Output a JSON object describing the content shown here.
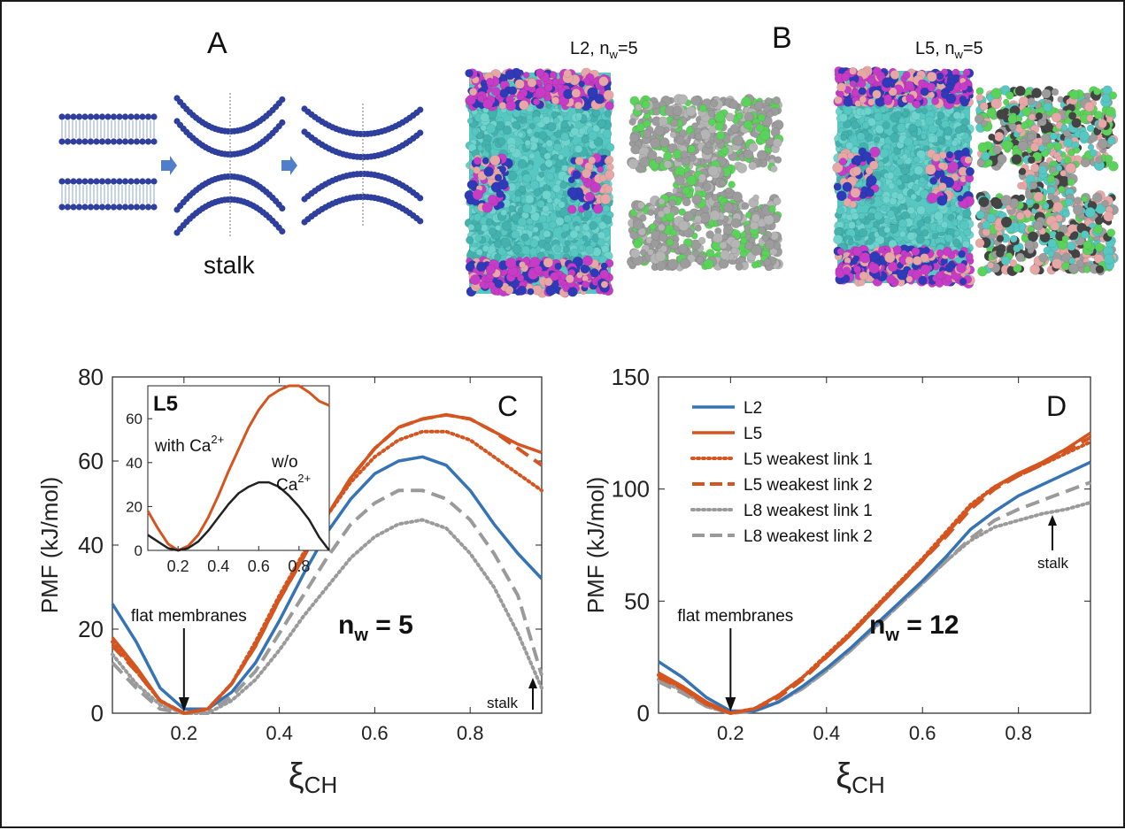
{
  "panel_a": {
    "letter": "A",
    "caption": "stalk"
  },
  "panel_b": {
    "letter": "B",
    "snapshot_left_label": {
      "name": "L2, n",
      "sub": "w",
      "value": "=5"
    },
    "snapshot_right_label": {
      "name": "L5, n",
      "sub": "w",
      "value": "=5"
    }
  },
  "colors": {
    "L2": "#3573b5",
    "L5": "#d4551f",
    "L8": "#9a9a9a",
    "inset_wo": "#222222",
    "water": "#57c7c2",
    "headgroup_magenta": "#c63cc6",
    "headgroup_pink": "#e7a7a7",
    "ion_blue": "#2f3ab8",
    "tail_gray": "#9c9c9c",
    "tail_green": "#5bd35b",
    "schematic_blue": "#2e3f9e"
  },
  "chart_data": [
    {
      "panel": "C",
      "type": "line",
      "ylabel": "PMF (kJ/mol)",
      "xlabel": "ξ",
      "xlabel_sub": "CH",
      "xlim": [
        0.05,
        0.95
      ],
      "ylim": [
        0,
        80
      ],
      "xticks": [
        "0.2",
        "0.4",
        "0.6",
        "0.8"
      ],
      "xtick_values": [
        0.2,
        0.4,
        0.6,
        0.8
      ],
      "yticks": [
        "0",
        "20",
        "40",
        "60",
        "80"
      ],
      "ytick_values": [
        0,
        20,
        40,
        60,
        80
      ],
      "annotation_nw": {
        "n": "n",
        "sub": "w",
        "rest": " = 5"
      },
      "annotation_flat": "flat membranes",
      "annotation_stalk": "stalk",
      "series": [
        {
          "id": "L2",
          "style": "solid",
          "x": [
            0.05,
            0.1,
            0.15,
            0.2,
            0.25,
            0.3,
            0.35,
            0.4,
            0.45,
            0.5,
            0.55,
            0.6,
            0.65,
            0.7,
            0.75,
            0.8,
            0.85,
            0.9,
            0.95
          ],
          "y": [
            26,
            17,
            6,
            1,
            1,
            5,
            12,
            22,
            33,
            43,
            51,
            57,
            60,
            61,
            59,
            53,
            45,
            38,
            32
          ]
        },
        {
          "id": "L5",
          "style": "solid",
          "x": [
            0.05,
            0.1,
            0.15,
            0.2,
            0.25,
            0.3,
            0.35,
            0.4,
            0.45,
            0.5,
            0.55,
            0.6,
            0.65,
            0.7,
            0.75,
            0.8,
            0.85,
            0.9,
            0.95
          ],
          "y": [
            18,
            11,
            3,
            0,
            1,
            7,
            16,
            27,
            37,
            47,
            56,
            63,
            68,
            70,
            71,
            70,
            67,
            64,
            62
          ]
        },
        {
          "id": "L5 weakest link 1",
          "style": "dotted",
          "x": [
            0.05,
            0.1,
            0.15,
            0.2,
            0.25,
            0.3,
            0.35,
            0.4,
            0.45,
            0.5,
            0.55,
            0.6,
            0.65,
            0.7,
            0.75,
            0.8,
            0.85,
            0.9,
            0.95
          ],
          "y": [
            17,
            10,
            3,
            0,
            1,
            7,
            17,
            28,
            38,
            47,
            55,
            61,
            65,
            67,
            67,
            65,
            61,
            57,
            53
          ]
        },
        {
          "id": "L5 weakest link 2",
          "style": "dashed",
          "x": [
            0.05,
            0.1,
            0.15,
            0.2,
            0.25,
            0.3,
            0.35,
            0.4,
            0.45,
            0.5,
            0.55,
            0.6,
            0.65,
            0.7,
            0.75,
            0.8,
            0.85,
            0.9,
            0.95
          ],
          "y": [
            16,
            10,
            3,
            0,
            1,
            7,
            16,
            27,
            37,
            47,
            56,
            63,
            68,
            70,
            71,
            70,
            67,
            63,
            59
          ]
        },
        {
          "id": "L8 weakest link 1",
          "style": "dotted",
          "x": [
            0.05,
            0.1,
            0.15,
            0.2,
            0.25,
            0.3,
            0.35,
            0.4,
            0.45,
            0.5,
            0.55,
            0.6,
            0.65,
            0.7,
            0.75,
            0.8,
            0.85,
            0.9,
            0.95
          ],
          "y": [
            14,
            7,
            2,
            0,
            0,
            3,
            8,
            15,
            23,
            30,
            37,
            42,
            45,
            46,
            44,
            38,
            30,
            19,
            6
          ]
        },
        {
          "id": "L8 weakest link 2",
          "style": "dashed",
          "x": [
            0.05,
            0.1,
            0.15,
            0.2,
            0.25,
            0.3,
            0.35,
            0.4,
            0.45,
            0.5,
            0.55,
            0.6,
            0.65,
            0.7,
            0.75,
            0.8,
            0.85,
            0.9,
            0.95
          ],
          "y": [
            12,
            6,
            1,
            0,
            0,
            4,
            10,
            19,
            28,
            37,
            45,
            50,
            53,
            53,
            51,
            46,
            38,
            28,
            9
          ]
        }
      ],
      "inset": {
        "type": "line",
        "label": "L5",
        "xlim": [
          0.05,
          0.95
        ],
        "ylim": [
          0,
          75
        ],
        "xticks": [
          "0.2",
          "0.4",
          "0.6",
          "0.8"
        ],
        "xtick_values": [
          0.2,
          0.4,
          0.6,
          0.8
        ],
        "yticks": [
          "0",
          "20",
          "40",
          "60"
        ],
        "ytick_values": [
          0,
          20,
          40,
          60
        ],
        "annotation_with": {
          "text": "with Ca",
          "sup": "2+"
        },
        "annotation_wo_1": "w/o",
        "annotation_wo_2": {
          "text": "Ca",
          "sup": "2+"
        },
        "series": [
          {
            "id": "with Ca2+",
            "x": [
              0.05,
              0.1,
              0.15,
              0.2,
              0.25,
              0.3,
              0.35,
              0.4,
              0.45,
              0.5,
              0.55,
              0.6,
              0.65,
              0.7,
              0.75,
              0.8,
              0.85,
              0.9,
              0.95
            ],
            "y": [
              18,
              10,
              3,
              0,
              2,
              7,
              15,
              25,
              36,
              46,
              56,
              64,
              70,
              73,
              75,
              75,
              72,
              68,
              66
            ]
          },
          {
            "id": "w/o Ca2+",
            "x": [
              0.05,
              0.1,
              0.15,
              0.2,
              0.25,
              0.3,
              0.35,
              0.4,
              0.45,
              0.5,
              0.55,
              0.6,
              0.65,
              0.7,
              0.75,
              0.8,
              0.85,
              0.9,
              0.95
            ],
            "y": [
              7,
              4,
              1,
              0,
              1,
              4,
              9,
              15,
              21,
              26,
              29,
              31,
              31,
              29,
              25,
              20,
              14,
              6,
              0
            ]
          }
        ]
      }
    },
    {
      "panel": "D",
      "type": "line",
      "ylabel": "PMF (kJ/mol)",
      "xlabel": "ξ",
      "xlabel_sub": "CH",
      "xlim": [
        0.05,
        0.95
      ],
      "ylim": [
        0,
        150
      ],
      "xticks": [
        "0.2",
        "0.4",
        "0.6",
        "0.8"
      ],
      "xtick_values": [
        0.2,
        0.4,
        0.6,
        0.8
      ],
      "yticks": [
        "0",
        "50",
        "100",
        "150"
      ],
      "ytick_values": [
        0,
        50,
        100,
        150
      ],
      "annotation_nw": {
        "n": "n",
        "sub": "w",
        "rest": " = 12"
      },
      "annotation_flat": "flat membranes",
      "annotation_stalk": "stalk",
      "legend": [
        "L2",
        "L5",
        "L5 weakest link 1",
        "L5 weakest link 2",
        "L8 weakest link 1",
        "L8 weakest link 2"
      ],
      "series": [
        {
          "id": "L2",
          "style": "solid",
          "x": [
            0.05,
            0.1,
            0.15,
            0.2,
            0.25,
            0.3,
            0.35,
            0.4,
            0.45,
            0.5,
            0.55,
            0.6,
            0.65,
            0.7,
            0.75,
            0.8,
            0.85,
            0.9,
            0.95
          ],
          "y": [
            23,
            16,
            7,
            1,
            1,
            5,
            12,
            20,
            29,
            39,
            49,
            59,
            70,
            82,
            90,
            97,
            102,
            107,
            112
          ]
        },
        {
          "id": "L5",
          "style": "solid",
          "x": [
            0.05,
            0.1,
            0.15,
            0.2,
            0.25,
            0.3,
            0.35,
            0.4,
            0.45,
            0.5,
            0.55,
            0.6,
            0.65,
            0.7,
            0.75,
            0.8,
            0.85,
            0.9,
            0.95
          ],
          "y": [
            18,
            12,
            5,
            0,
            2,
            8,
            16,
            25,
            35,
            46,
            57,
            68,
            80,
            92,
            101,
            107,
            112,
            118,
            125
          ]
        },
        {
          "id": "L5 weakest link 1",
          "style": "dotted",
          "x": [
            0.05,
            0.1,
            0.15,
            0.2,
            0.25,
            0.3,
            0.35,
            0.4,
            0.45,
            0.5,
            0.55,
            0.6,
            0.65,
            0.7,
            0.75,
            0.8,
            0.85,
            0.9,
            0.95
          ],
          "y": [
            17,
            11,
            4,
            0,
            2,
            8,
            16,
            26,
            36,
            47,
            58,
            69,
            81,
            93,
            101,
            106,
            111,
            116,
            121
          ]
        },
        {
          "id": "L5 weakest link 2",
          "style": "dashed",
          "x": [
            0.05,
            0.1,
            0.15,
            0.2,
            0.25,
            0.3,
            0.35,
            0.4,
            0.45,
            0.5,
            0.55,
            0.6,
            0.65,
            0.7,
            0.75,
            0.8,
            0.85,
            0.9,
            0.95
          ],
          "y": [
            16,
            11,
            4,
            0,
            2,
            7,
            15,
            25,
            35,
            46,
            57,
            68,
            79,
            91,
            100,
            106,
            111,
            117,
            123
          ]
        },
        {
          "id": "L8 weakest link 1",
          "style": "dotted",
          "x": [
            0.05,
            0.1,
            0.15,
            0.2,
            0.25,
            0.3,
            0.35,
            0.4,
            0.45,
            0.5,
            0.55,
            0.6,
            0.65,
            0.7,
            0.75,
            0.8,
            0.85,
            0.9,
            0.95
          ],
          "y": [
            15,
            10,
            3,
            0,
            1,
            5,
            11,
            19,
            28,
            38,
            48,
            58,
            68,
            77,
            83,
            86,
            89,
            91,
            94
          ]
        },
        {
          "id": "L8 weakest link 2",
          "style": "dashed",
          "x": [
            0.05,
            0.1,
            0.15,
            0.2,
            0.25,
            0.3,
            0.35,
            0.4,
            0.45,
            0.5,
            0.55,
            0.6,
            0.65,
            0.7,
            0.75,
            0.8,
            0.85,
            0.9,
            0.95
          ],
          "y": [
            14,
            9,
            3,
            0,
            1,
            5,
            11,
            19,
            28,
            38,
            48,
            58,
            68,
            78,
            86,
            91,
            95,
            99,
            103
          ]
        }
      ]
    }
  ]
}
